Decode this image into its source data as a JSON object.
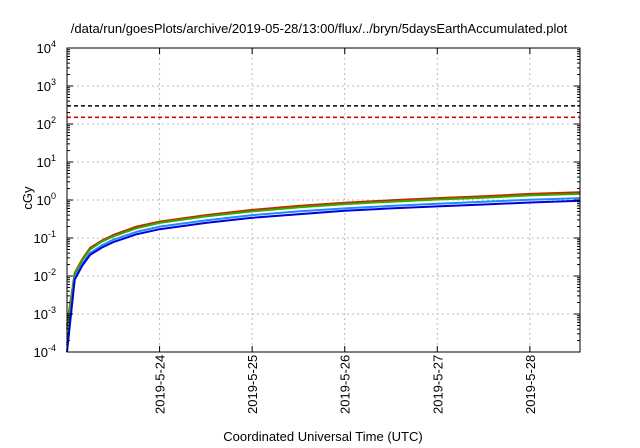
{
  "chart_data": {
    "type": "line",
    "title": "/data/run/goesPlots/archive/2019-05-28/13:00/flux/../bryn/5daysEarthAccumulated.plot",
    "xlabel": "Coordinated Universal Time (UTC)",
    "ylabel": "cGy",
    "x_ticks": [
      "2019-5-24",
      "2019-5-25",
      "2019-5-26",
      "2019-5-27",
      "2019-5-28"
    ],
    "y_tick_exponents": [
      "-4",
      "-3",
      "-2",
      "-1",
      "0",
      "1",
      "2",
      "3",
      "4"
    ],
    "y_scale": "log",
    "y_range": [
      0.0001,
      10000
    ],
    "x_range": [
      "2019-05-23 00:00",
      "2019-05-28 13:00"
    ],
    "grid": true,
    "legend": "none",
    "reference_lines": [
      {
        "value": 300,
        "color": "#000000",
        "style": "dashed"
      },
      {
        "value": 150,
        "color": "#e00000",
        "style": "dashed"
      }
    ],
    "series": [
      {
        "color": "#cc2200",
        "x": [
          "2019-05-23 00:00",
          "2019-05-23 02:00",
          "2019-05-23 04:00",
          "2019-05-23 06:00",
          "2019-05-23 09:00",
          "2019-05-23 12:00",
          "2019-05-23 18:00",
          "2019-05-24 00:00",
          "2019-05-24 12:00",
          "2019-05-25 00:00",
          "2019-05-25 12:00",
          "2019-05-26 00:00",
          "2019-05-26 12:00",
          "2019-05-27 00:00",
          "2019-05-27 12:00",
          "2019-05-28 00:00",
          "2019-05-28 13:00"
        ],
        "y": [
          0.0005,
          0.012,
          0.028,
          0.055,
          0.085,
          0.12,
          0.2,
          0.27,
          0.4,
          0.55,
          0.7,
          0.85,
          0.98,
          1.12,
          1.25,
          1.45,
          1.6
        ]
      },
      {
        "color": "#33aa00",
        "x": [
          "2019-05-23 00:00",
          "2019-05-23 02:00",
          "2019-05-23 04:00",
          "2019-05-23 06:00",
          "2019-05-23 09:00",
          "2019-05-23 12:00",
          "2019-05-23 18:00",
          "2019-05-24 00:00",
          "2019-05-24 12:00",
          "2019-05-25 00:00",
          "2019-05-25 12:00",
          "2019-05-26 00:00",
          "2019-05-26 12:00",
          "2019-05-27 00:00",
          "2019-05-27 12:00",
          "2019-05-28 00:00",
          "2019-05-28 13:00"
        ],
        "y": [
          0.0004,
          0.011,
          0.026,
          0.05,
          0.08,
          0.11,
          0.18,
          0.25,
          0.37,
          0.5,
          0.64,
          0.78,
          0.9,
          1.03,
          1.15,
          1.32,
          1.45
        ]
      },
      {
        "color": "#2288ff",
        "x": [
          "2019-05-23 00:00",
          "2019-05-23 02:00",
          "2019-05-23 04:00",
          "2019-05-23 06:00",
          "2019-05-23 09:00",
          "2019-05-23 12:00",
          "2019-05-23 18:00",
          "2019-05-24 00:00",
          "2019-05-24 12:00",
          "2019-05-25 00:00",
          "2019-05-25 12:00",
          "2019-05-26 00:00",
          "2019-05-26 12:00",
          "2019-05-27 00:00",
          "2019-05-27 12:00",
          "2019-05-28 00:00",
          "2019-05-28 13:00"
        ],
        "y": [
          0.00015,
          0.009,
          0.021,
          0.04,
          0.064,
          0.09,
          0.145,
          0.2,
          0.29,
          0.4,
          0.5,
          0.6,
          0.7,
          0.8,
          0.9,
          1.02,
          1.12
        ]
      },
      {
        "color": "#0000dd",
        "x": [
          "2019-05-23 00:00",
          "2019-05-23 02:00",
          "2019-05-23 04:00",
          "2019-05-23 06:00",
          "2019-05-23 09:00",
          "2019-05-23 12:00",
          "2019-05-23 18:00",
          "2019-05-24 00:00",
          "2019-05-24 12:00",
          "2019-05-25 00:00",
          "2019-05-25 12:00",
          "2019-05-26 00:00",
          "2019-05-26 12:00",
          "2019-05-27 00:00",
          "2019-05-27 12:00",
          "2019-05-28 00:00",
          "2019-05-28 13:00"
        ],
        "y": [
          0.0001,
          0.008,
          0.019,
          0.036,
          0.056,
          0.078,
          0.125,
          0.17,
          0.25,
          0.34,
          0.42,
          0.52,
          0.6,
          0.68,
          0.76,
          0.86,
          0.95
        ]
      }
    ]
  }
}
